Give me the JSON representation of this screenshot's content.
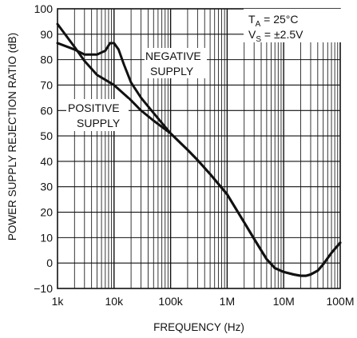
{
  "chart_data": {
    "type": "line",
    "xlabel": "FREQUENCY (Hz)",
    "ylabel": "POWER SUPPLY REJECTION RATIO (dB)",
    "x_scale": "log",
    "xlim": [
      1000,
      100000000
    ],
    "ylim": [
      -10,
      100
    ],
    "grid": true,
    "x_tick_labels": [
      "1k",
      "10k",
      "100k",
      "1M",
      "10M",
      "100M"
    ],
    "y_tick_labels": [
      "100",
      "90",
      "80",
      "70",
      "60",
      "50",
      "40",
      "30",
      "20",
      "10",
      "0",
      "−10"
    ],
    "conditions": {
      "ta_main": "T",
      "ta_sub": "A",
      "ta_rest": " = 25°C",
      "vs_main": "V",
      "vs_sub": "S",
      "vs_rest": " = ±2.5V"
    },
    "annotations": {
      "negative": [
        "NEGATIVE",
        "SUPPLY"
      ],
      "positive": [
        "POSITIVE",
        "SUPPLY"
      ]
    },
    "series": [
      {
        "name": "NEGATIVE SUPPLY",
        "x": [
          1000,
          2000,
          3000,
          5000,
          7000,
          8500,
          10000,
          12000,
          15000,
          20000,
          30000,
          50000,
          100000,
          200000,
          300000,
          500000,
          1000000,
          2000000,
          3000000,
          5000000,
          7000000,
          10000000,
          15000000,
          20000000,
          25000000,
          30000000,
          40000000,
          50000000,
          70000000,
          100000000
        ],
        "y": [
          86.5,
          84,
          82,
          82,
          83.5,
          86.5,
          86.5,
          84,
          78,
          71,
          65,
          59,
          51,
          44.5,
          40.5,
          35,
          27,
          16,
          9.5,
          1.5,
          -2,
          -3.5,
          -4.5,
          -5,
          -5,
          -4.5,
          -3,
          -0.5,
          4,
          8
        ]
      },
      {
        "name": "POSITIVE SUPPLY",
        "x": [
          1000,
          2000,
          3000,
          5000,
          10000,
          20000,
          30000,
          50000,
          100000,
          200000,
          300000,
          500000,
          1000000,
          2000000,
          3000000,
          5000000,
          7000000,
          10000000,
          15000000,
          20000000,
          25000000,
          30000000,
          40000000,
          50000000,
          70000000,
          100000000
        ],
        "y": [
          94,
          85,
          79.5,
          74,
          70,
          64,
          60,
          56,
          51,
          44.5,
          40.5,
          35,
          27,
          16,
          9.5,
          1.5,
          -2,
          -3.5,
          -4.5,
          -5,
          -5,
          -4.5,
          -3,
          -0.5,
          4,
          8
        ]
      }
    ]
  }
}
